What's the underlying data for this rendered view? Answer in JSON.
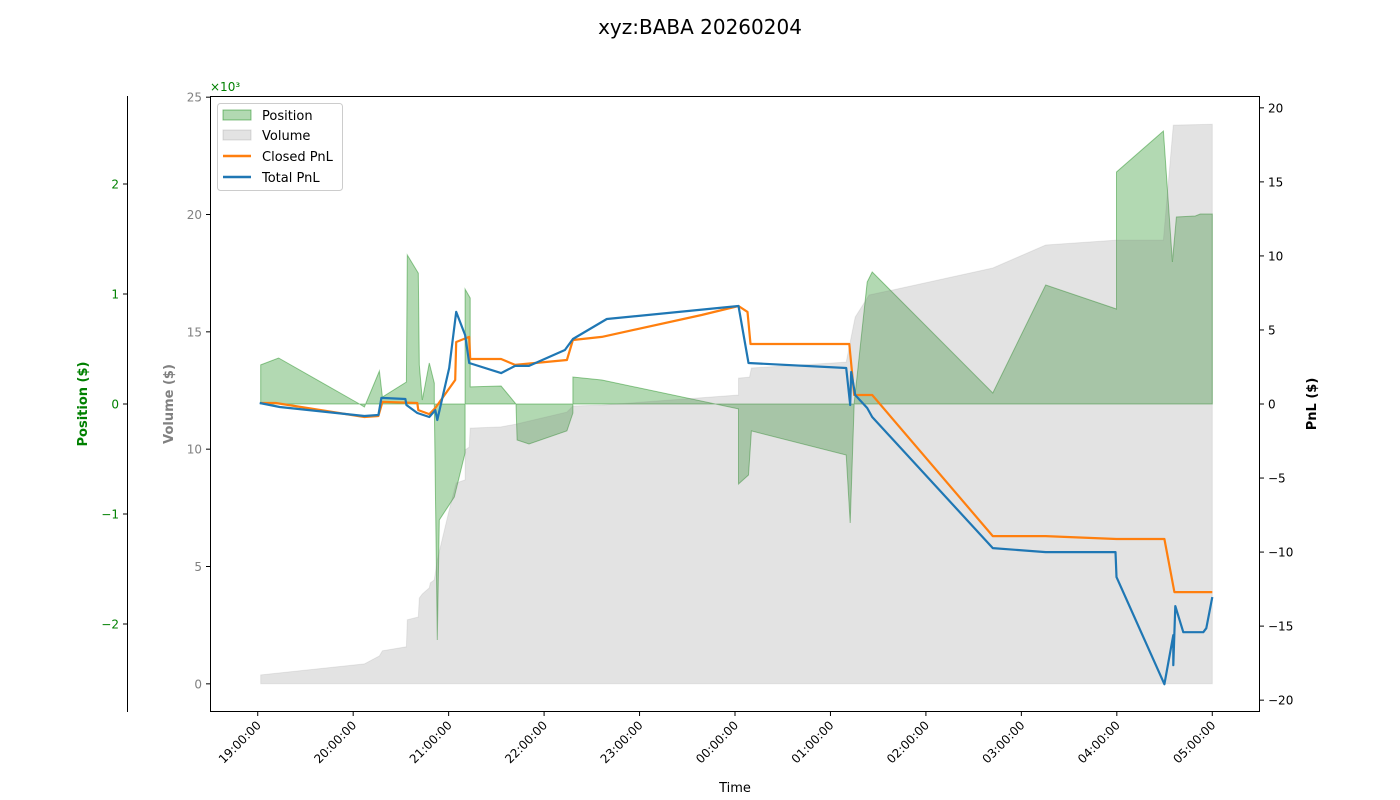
{
  "chart_data": {
    "type": "area",
    "title": "xyz:BABA 20260204",
    "xlabel": "Time",
    "x_units": "hours since 19:00:00",
    "xlim": [
      -0.5,
      10.5
    ],
    "x_ticks": [
      {
        "value": 0,
        "label": "19:00:00"
      },
      {
        "value": 1,
        "label": "20:00:00"
      },
      {
        "value": 2,
        "label": "21:00:00"
      },
      {
        "value": 3,
        "label": "22:00:00"
      },
      {
        "value": 4,
        "label": "23:00:00"
      },
      {
        "value": 5,
        "label": "00:00:00"
      },
      {
        "value": 6,
        "label": "01:00:00"
      },
      {
        "value": 7,
        "label": "02:00:00"
      },
      {
        "value": 8,
        "label": "03:00:00"
      },
      {
        "value": 9,
        "label": "04:00:00"
      },
      {
        "value": 10,
        "label": "05:00:00"
      }
    ],
    "axes": {
      "position": {
        "label": "Position ($)",
        "color": "#008000",
        "scale_label": "×10³",
        "ylim": [
          -2.8,
          2.8
        ],
        "ticks": [
          {
            "value": -2,
            "label": "−2"
          },
          {
            "value": -1,
            "label": "−1"
          },
          {
            "value": 0,
            "label": "0"
          },
          {
            "value": 1,
            "label": "1"
          },
          {
            "value": 2,
            "label": "2"
          }
        ]
      },
      "volume": {
        "label": "Volume ($)",
        "color": "#808080",
        "ylim": [
          -1.2,
          25.05
        ],
        "ticks": [
          {
            "value": 0,
            "label": "0"
          },
          {
            "value": 5,
            "label": "5"
          },
          {
            "value": 10,
            "label": "10"
          },
          {
            "value": 15,
            "label": "15"
          },
          {
            "value": 20,
            "label": "20"
          },
          {
            "value": 25,
            "label": "25"
          }
        ]
      },
      "pnl": {
        "label": "PnL ($)",
        "color": "#000000",
        "ylim": [
          -20.8,
          20.8
        ],
        "ticks": [
          {
            "value": -20,
            "label": "−20"
          },
          {
            "value": -15,
            "label": "−15"
          },
          {
            "value": -10,
            "label": "−10"
          },
          {
            "value": -5,
            "label": "−5"
          },
          {
            "value": 0,
            "label": "0"
          },
          {
            "value": 5,
            "label": "5"
          },
          {
            "value": 10,
            "label": "10"
          },
          {
            "value": 15,
            "label": "15"
          },
          {
            "value": 20,
            "label": "20"
          }
        ]
      }
    },
    "legend": {
      "placement": "top-left",
      "entries": [
        "Position",
        "Volume",
        "Closed PnL",
        "Total PnL"
      ]
    },
    "series": [
      {
        "name": "Position",
        "axis": "position",
        "kind": "area",
        "color": "#008000",
        "points": [
          [
            0.031,
            0.355
          ],
          [
            0.219,
            0.418
          ],
          [
            1.066,
            0
          ],
          [
            1.118,
            -0.027
          ],
          [
            1.275,
            0.3
          ],
          [
            1.306,
            0.064
          ],
          [
            1.557,
            0.2
          ],
          [
            1.567,
            1.355
          ],
          [
            1.682,
            1.19
          ],
          [
            1.693,
            0.355
          ],
          [
            1.724,
            0.036
          ],
          [
            1.797,
            0.373
          ],
          [
            1.85,
            0.19
          ],
          [
            1.85,
            0
          ],
          [
            1.881,
            -2.145
          ],
          [
            1.902,
            -1.055
          ],
          [
            2.059,
            -0.845
          ],
          [
            2.173,
            -0.445
          ],
          [
            2.173,
            1.045
          ],
          [
            2.226,
            0.964
          ],
          [
            2.226,
            0.155
          ],
          [
            2.55,
            0.164
          ],
          [
            2.706,
            0
          ],
          [
            2.717,
            -0.327
          ],
          [
            2.842,
            -0.364
          ],
          [
            3.239,
            -0.245
          ],
          [
            3.302,
            -0.082
          ],
          [
            3.302,
            0.245
          ],
          [
            3.605,
            0.218
          ],
          [
            5.037,
            -0.045
          ],
          [
            5.037,
            -0.727
          ],
          [
            5.141,
            -0.645
          ],
          [
            5.172,
            -0.245
          ],
          [
            6.165,
            -0.464
          ],
          [
            6.207,
            -1.082
          ],
          [
            6.249,
            0.009
          ],
          [
            6.385,
            1.109
          ],
          [
            6.437,
            1.2
          ],
          [
            7.701,
            0.1
          ],
          [
            8.255,
            1.082
          ],
          [
            8.997,
            0.864
          ],
          [
            8.997,
            2.109
          ],
          [
            9.488,
            2.482
          ],
          [
            9.582,
            1.291
          ],
          [
            9.624,
            1.7
          ],
          [
            9.822,
            1.709
          ],
          [
            9.875,
            1.727
          ],
          [
            10.0,
            1.727
          ]
        ]
      },
      {
        "name": "Volume",
        "axis": "volume",
        "kind": "area",
        "color": "#808080",
        "points": [
          [
            0.031,
            0.38
          ],
          [
            1.118,
            0.85
          ],
          [
            1.275,
            1.19
          ],
          [
            1.306,
            1.41
          ],
          [
            1.557,
            1.58
          ],
          [
            1.567,
            2.73
          ],
          [
            1.682,
            2.85
          ],
          [
            1.693,
            3.66
          ],
          [
            1.724,
            3.83
          ],
          [
            1.797,
            4.09
          ],
          [
            1.808,
            4.3
          ],
          [
            1.85,
            4.43
          ],
          [
            1.881,
            5.28
          ],
          [
            2.006,
            7.41
          ],
          [
            2.079,
            8.56
          ],
          [
            2.173,
            8.69
          ],
          [
            2.173,
            9.97
          ],
          [
            2.215,
            10.09
          ],
          [
            2.226,
            10.9
          ],
          [
            2.55,
            10.95
          ],
          [
            2.706,
            11.07
          ],
          [
            3.239,
            11.58
          ],
          [
            3.302,
            11.84
          ],
          [
            3.605,
            11.88
          ],
          [
            5.037,
            12.31
          ],
          [
            5.037,
            13.03
          ],
          [
            5.152,
            13.07
          ],
          [
            5.172,
            13.46
          ],
          [
            6.165,
            13.71
          ],
          [
            6.217,
            14.78
          ],
          [
            6.259,
            15.63
          ],
          [
            6.405,
            16.57
          ],
          [
            6.646,
            16.78
          ],
          [
            7.701,
            17.72
          ],
          [
            8.255,
            18.7
          ],
          [
            8.997,
            18.91
          ],
          [
            9.488,
            18.91
          ],
          [
            9.592,
            23.81
          ],
          [
            10.0,
            23.85
          ]
        ]
      },
      {
        "name": "Closed PnL",
        "axis": "pnl",
        "kind": "line",
        "color": "#ff7f0e",
        "points": [
          [
            0.031,
            0.07
          ],
          [
            0.188,
            0.07
          ],
          [
            1.118,
            -0.88
          ],
          [
            1.264,
            -0.81
          ],
          [
            1.306,
            0.14
          ],
          [
            1.672,
            0.07
          ],
          [
            1.682,
            -0.41
          ],
          [
            1.797,
            -0.68
          ],
          [
            1.86,
            -0.27
          ],
          [
            2.069,
            1.62
          ],
          [
            2.079,
            4.19
          ],
          [
            2.215,
            4.53
          ],
          [
            2.226,
            3.04
          ],
          [
            2.55,
            3.04
          ],
          [
            2.696,
            2.64
          ],
          [
            3.239,
            2.97
          ],
          [
            3.302,
            4.32
          ],
          [
            3.605,
            4.53
          ],
          [
            4.65,
            6.01
          ],
          [
            5.037,
            6.62
          ],
          [
            5.131,
            6.22
          ],
          [
            5.162,
            4.05
          ],
          [
            6.197,
            4.05
          ],
          [
            6.249,
            0.61
          ],
          [
            6.437,
            0.61
          ],
          [
            7.701,
            -8.92
          ],
          [
            8.255,
            -8.92
          ],
          [
            8.997,
            -9.12
          ],
          [
            9.498,
            -9.12
          ],
          [
            9.603,
            -12.7
          ],
          [
            10.0,
            -12.7
          ]
        ]
      },
      {
        "name": "Total PnL",
        "axis": "pnl",
        "kind": "line",
        "color": "#1f77b4",
        "points": [
          [
            0.021,
            0.07
          ],
          [
            0.23,
            -0.2
          ],
          [
            1.118,
            -0.81
          ],
          [
            1.264,
            -0.74
          ],
          [
            1.296,
            0.41
          ],
          [
            1.547,
            0.34
          ],
          [
            1.557,
            -0.07
          ],
          [
            1.672,
            -0.61
          ],
          [
            1.797,
            -0.88
          ],
          [
            1.86,
            -0.41
          ],
          [
            1.881,
            -1.08
          ],
          [
            2.006,
            2.43
          ],
          [
            2.079,
            6.22
          ],
          [
            2.173,
            4.66
          ],
          [
            2.215,
            2.77
          ],
          [
            2.55,
            2.09
          ],
          [
            2.696,
            2.57
          ],
          [
            2.842,
            2.57
          ],
          [
            3.218,
            3.65
          ],
          [
            3.302,
            4.39
          ],
          [
            3.657,
            5.74
          ],
          [
            5.037,
            6.62
          ],
          [
            5.141,
            2.77
          ],
          [
            6.165,
            2.43
          ],
          [
            6.207,
            -0.07
          ],
          [
            6.217,
            2.16
          ],
          [
            6.259,
            0.61
          ],
          [
            6.385,
            -0.27
          ],
          [
            6.437,
            -0.88
          ],
          [
            7.701,
            -9.73
          ],
          [
            8.255,
            -10.0
          ],
          [
            8.986,
            -10.0
          ],
          [
            8.997,
            -11.69
          ],
          [
            9.498,
            -18.92
          ],
          [
            9.592,
            -15.61
          ],
          [
            9.592,
            -17.64
          ],
          [
            9.613,
            -13.65
          ],
          [
            9.697,
            -15.41
          ],
          [
            9.906,
            -15.41
          ],
          [
            9.937,
            -15.14
          ],
          [
            10.0,
            -13.04
          ]
        ]
      }
    ]
  }
}
